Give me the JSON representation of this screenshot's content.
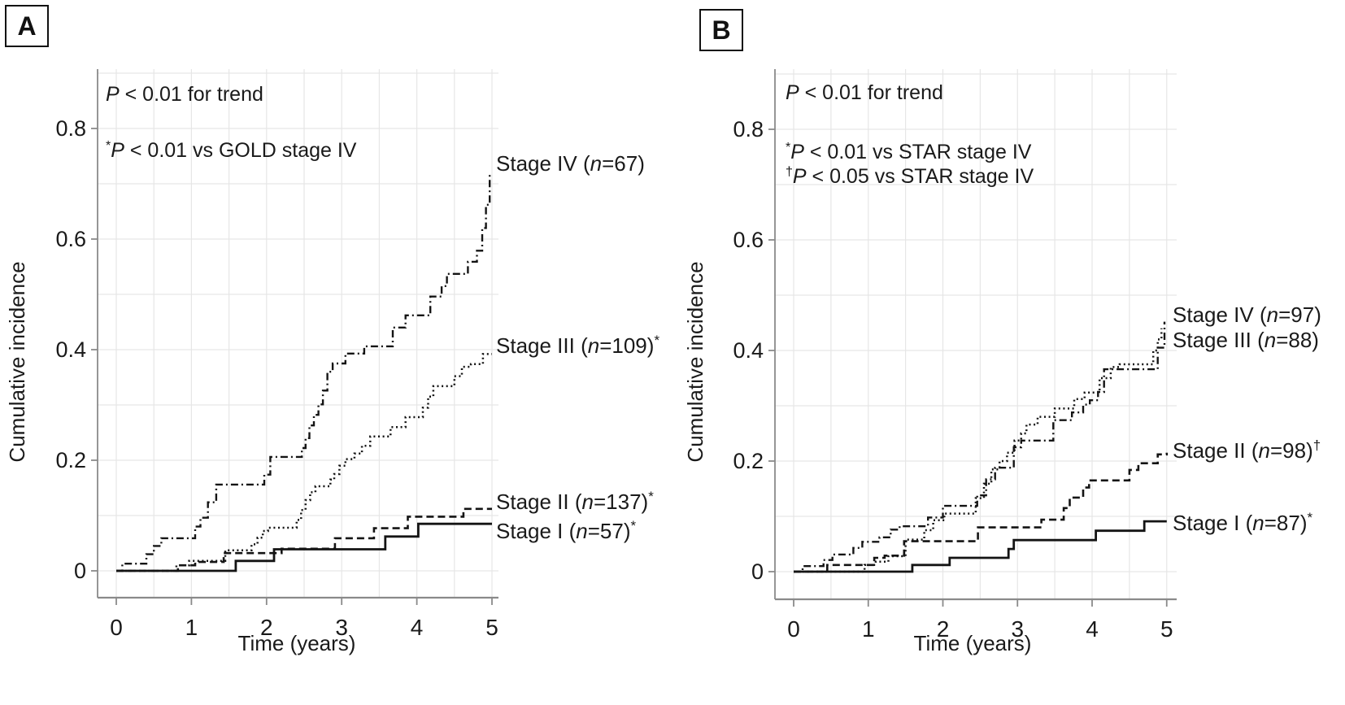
{
  "figure_title": "Cumulative incidence by stage (two-panel step chart)",
  "colors": {
    "curve": "#141414",
    "grid": "#e6e6e6",
    "axis": "#8a8a8a",
    "text": "#1a1a1a",
    "background": "#ffffff"
  },
  "chart_data": [
    {
      "type": "line",
      "subtype": "step-cumulative-incidence",
      "panel_label": "A",
      "annotations": [
        {
          "sup": "",
          "italic": "P",
          "text": " < 0.01 for trend"
        },
        {
          "sup": "*",
          "italic": "P",
          "text": " < 0.01 vs GOLD stage IV"
        }
      ],
      "xlabel": "Time (years)",
      "ylabel": "Cumulative incidence",
      "xlim": [
        0,
        5
      ],
      "ylim": [
        0,
        0.9
      ],
      "xticks": [
        0,
        1,
        2,
        3,
        4,
        5
      ],
      "yticks": [
        0,
        0.2,
        0.4,
        0.6,
        0.8
      ],
      "grid": {
        "x_minor_step": 0.5,
        "y_minor_step": 0.1,
        "shown": true
      },
      "legend_position": "right-of-curve-labels",
      "series": [
        {
          "name": "stage-iv",
          "stage": "Stage IV",
          "n": 67,
          "sup": "",
          "linestyle": "dashdot",
          "label_y": 0.737,
          "points": [
            [
              0,
              0
            ],
            [
              0.08,
              0.013
            ],
            [
              0.4,
              0.03
            ],
            [
              0.5,
              0.045
            ],
            [
              0.6,
              0.059
            ],
            [
              1.05,
              0.08
            ],
            [
              1.12,
              0.096
            ],
            [
              1.22,
              0.124
            ],
            [
              1.33,
              0.156
            ],
            [
              1.97,
              0.174
            ],
            [
              2.05,
              0.206
            ],
            [
              2.47,
              0.222
            ],
            [
              2.52,
              0.24
            ],
            [
              2.57,
              0.263
            ],
            [
              2.63,
              0.282
            ],
            [
              2.69,
              0.301
            ],
            [
              2.75,
              0.326
            ],
            [
              2.81,
              0.36
            ],
            [
              2.88,
              0.375
            ],
            [
              3.05,
              0.393
            ],
            [
              3.3,
              0.406
            ],
            [
              3.68,
              0.44
            ],
            [
              3.85,
              0.462
            ],
            [
              4.18,
              0.496
            ],
            [
              4.33,
              0.515
            ],
            [
              4.4,
              0.537
            ],
            [
              4.68,
              0.559
            ],
            [
              4.8,
              0.579
            ],
            [
              4.87,
              0.62
            ],
            [
              4.92,
              0.662
            ],
            [
              4.97,
              0.716
            ]
          ]
        },
        {
          "name": "stage-iii",
          "stage": "Stage III",
          "n": 109,
          "sup": "*",
          "linestyle": "dotted",
          "label_y": 0.407,
          "points": [
            [
              0,
              0
            ],
            [
              0.8,
              0.01
            ],
            [
              0.97,
              0.018
            ],
            [
              1.45,
              0.037
            ],
            [
              1.8,
              0.048
            ],
            [
              1.88,
              0.06
            ],
            [
              1.95,
              0.072
            ],
            [
              2.02,
              0.078
            ],
            [
              2.4,
              0.092
            ],
            [
              2.46,
              0.11
            ],
            [
              2.52,
              0.128
            ],
            [
              2.58,
              0.142
            ],
            [
              2.65,
              0.153
            ],
            [
              2.85,
              0.165
            ],
            [
              2.9,
              0.175
            ],
            [
              2.97,
              0.19
            ],
            [
              3.05,
              0.202
            ],
            [
              3.17,
              0.212
            ],
            [
              3.27,
              0.226
            ],
            [
              3.38,
              0.243
            ],
            [
              3.65,
              0.26
            ],
            [
              3.85,
              0.278
            ],
            [
              4.08,
              0.295
            ],
            [
              4.15,
              0.315
            ],
            [
              4.22,
              0.334
            ],
            [
              4.5,
              0.352
            ],
            [
              4.6,
              0.369
            ],
            [
              4.72,
              0.374
            ],
            [
              4.88,
              0.392
            ],
            [
              5.0,
              0.392
            ]
          ]
        },
        {
          "name": "stage-ii",
          "stage": "Stage II",
          "n": 137,
          "sup": "*",
          "linestyle": "dashed",
          "label_y": 0.125,
          "points": [
            [
              0,
              0
            ],
            [
              0.82,
              0.01
            ],
            [
              1.05,
              0.016
            ],
            [
              1.43,
              0.032
            ],
            [
              2.2,
              0.04
            ],
            [
              2.91,
              0.059
            ],
            [
              3.43,
              0.077
            ],
            [
              3.88,
              0.098
            ],
            [
              4.62,
              0.112
            ],
            [
              5.0,
              0.112
            ]
          ]
        },
        {
          "name": "stage-i",
          "stage": "Stage I",
          "n": 57,
          "sup": "*",
          "linestyle": "solid",
          "label_y": 0.072,
          "points": [
            [
              0,
              0
            ],
            [
              1.59,
              0.018
            ],
            [
              2.1,
              0.039
            ],
            [
              3.58,
              0.062
            ],
            [
              4.02,
              0.085
            ],
            [
              5.0,
              0.085
            ]
          ]
        }
      ]
    },
    {
      "type": "line",
      "subtype": "step-cumulative-incidence",
      "panel_label": "B",
      "annotations": [
        {
          "sup": "",
          "italic": "P",
          "text": " < 0.01 for trend"
        },
        {
          "sup": "*",
          "italic": "P",
          "text": " < 0.01 vs STAR stage IV"
        },
        {
          "sup": "†",
          "italic": "P",
          "text": " < 0.05 vs STAR stage IV"
        }
      ],
      "xlabel": "Time (years)",
      "ylabel": "Cumulative incidence",
      "xlim": [
        0,
        5
      ],
      "ylim": [
        0,
        0.9
      ],
      "xticks": [
        0,
        1,
        2,
        3,
        4,
        5
      ],
      "yticks": [
        0,
        0.2,
        0.4,
        0.6,
        0.8
      ],
      "grid": {
        "x_minor_step": 0.5,
        "y_minor_step": 0.1,
        "shown": true
      },
      "legend_position": "right-of-curve-labels",
      "series": [
        {
          "name": "stage-iv",
          "stage": "Stage IV",
          "n": 97,
          "sup": "",
          "linestyle": "dashdot",
          "label_y": 0.465,
          "points": [
            [
              0,
              0
            ],
            [
              0.12,
              0.01
            ],
            [
              0.4,
              0.021
            ],
            [
              0.52,
              0.031
            ],
            [
              0.8,
              0.043
            ],
            [
              0.92,
              0.054
            ],
            [
              1.15,
              0.062
            ],
            [
              1.3,
              0.076
            ],
            [
              1.42,
              0.082
            ],
            [
              1.8,
              0.098
            ],
            [
              2.0,
              0.119
            ],
            [
              2.46,
              0.138
            ],
            [
              2.58,
              0.167
            ],
            [
              2.7,
              0.188
            ],
            [
              2.95,
              0.225
            ],
            [
              3.05,
              0.237
            ],
            [
              3.48,
              0.274
            ],
            [
              3.73,
              0.288
            ],
            [
              3.88,
              0.302
            ],
            [
              3.97,
              0.31
            ],
            [
              4.08,
              0.325
            ],
            [
              4.16,
              0.366
            ],
            [
              4.88,
              0.405
            ],
            [
              4.97,
              0.452
            ]
          ]
        },
        {
          "name": "stage-iii",
          "stage": "Stage III",
          "n": 88,
          "sup": "",
          "linestyle": "dotted",
          "label_y": 0.419,
          "points": [
            [
              0,
              0
            ],
            [
              0.95,
              0.012
            ],
            [
              1.1,
              0.018
            ],
            [
              1.27,
              0.028
            ],
            [
              1.5,
              0.058
            ],
            [
              1.75,
              0.075
            ],
            [
              1.87,
              0.093
            ],
            [
              2.02,
              0.105
            ],
            [
              2.44,
              0.133
            ],
            [
              2.55,
              0.159
            ],
            [
              2.65,
              0.185
            ],
            [
              2.76,
              0.2
            ],
            [
              2.86,
              0.215
            ],
            [
              2.96,
              0.237
            ],
            [
              3.05,
              0.25
            ],
            [
              3.12,
              0.266
            ],
            [
              3.27,
              0.28
            ],
            [
              3.5,
              0.295
            ],
            [
              3.76,
              0.312
            ],
            [
              3.9,
              0.324
            ],
            [
              4.1,
              0.35
            ],
            [
              4.25,
              0.37
            ],
            [
              4.37,
              0.375
            ],
            [
              4.82,
              0.4
            ],
            [
              4.88,
              0.42
            ],
            [
              4.93,
              0.44
            ]
          ]
        },
        {
          "name": "stage-ii",
          "stage": "Stage II",
          "n": 98,
          "sup": "†",
          "linestyle": "dashed",
          "label_y": 0.219,
          "points": [
            [
              0,
              0
            ],
            [
              0.45,
              0.012
            ],
            [
              1.08,
              0.025
            ],
            [
              1.22,
              0.029
            ],
            [
              1.48,
              0.055
            ],
            [
              2.47,
              0.08
            ],
            [
              3.32,
              0.094
            ],
            [
              3.62,
              0.115
            ],
            [
              3.7,
              0.134
            ],
            [
              3.88,
              0.152
            ],
            [
              3.96,
              0.165
            ],
            [
              4.5,
              0.184
            ],
            [
              4.62,
              0.196
            ],
            [
              4.88,
              0.212
            ],
            [
              5.0,
              0.215
            ]
          ]
        },
        {
          "name": "stage-i",
          "stage": "Stage I",
          "n": 87,
          "sup": "*",
          "linestyle": "solid",
          "label_y": 0.088,
          "points": [
            [
              0,
              0
            ],
            [
              1.59,
              0.012
            ],
            [
              2.09,
              0.025
            ],
            [
              2.88,
              0.041
            ],
            [
              2.95,
              0.057
            ],
            [
              4.05,
              0.074
            ],
            [
              4.7,
              0.091
            ],
            [
              5.0,
              0.091
            ]
          ]
        }
      ]
    }
  ]
}
